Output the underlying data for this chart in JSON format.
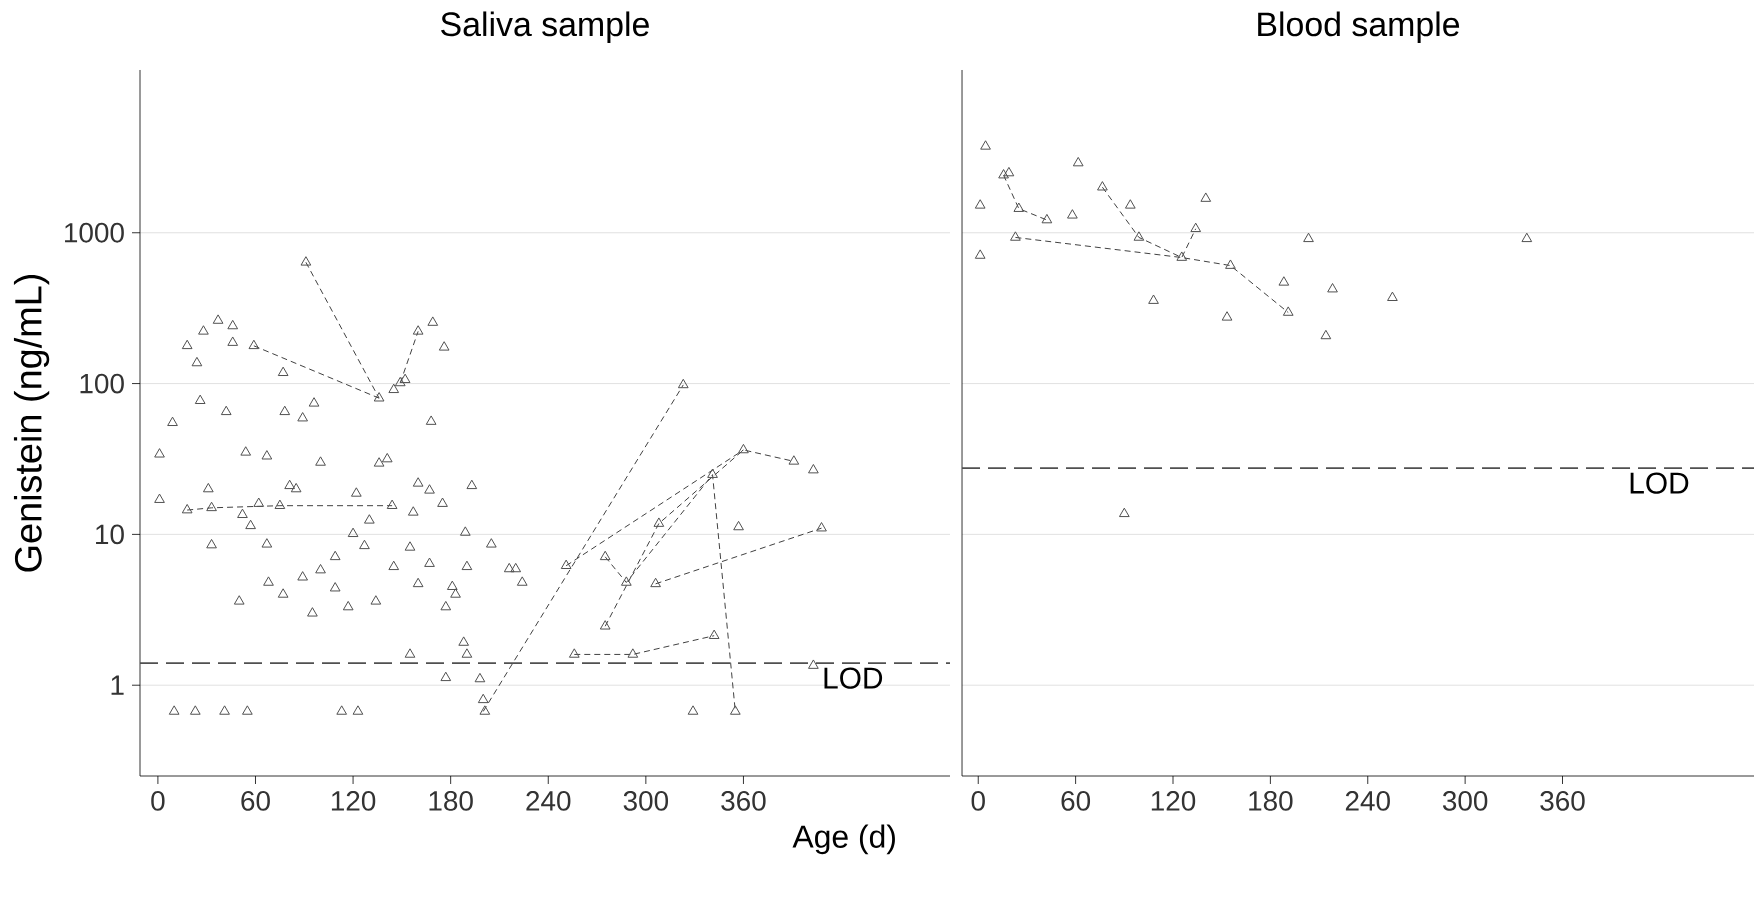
{
  "chart_data": [
    {
      "type": "scatter",
      "title": "Saliva sample",
      "xlabel": "Age (d)",
      "ylabel": "Genistein (ng/mL)",
      "log": "y",
      "grid": "y",
      "marker": "triangle",
      "xlim": [
        -11,
        487
      ],
      "xticks": [
        0,
        60,
        120,
        180,
        240,
        300,
        360
      ],
      "ylim": [
        0.25,
        12000
      ],
      "yticks": [
        1,
        10,
        100,
        1000
      ],
      "ref_lines": [
        {
          "axis": "y",
          "value": 1.4,
          "label": "LOD",
          "color": "#505050",
          "line_style": "dashed"
        }
      ],
      "series": [
        {
          "color": "#505050",
          "x": [
            1,
            1,
            9,
            18,
            28,
            24,
            37,
            46,
            46,
            59,
            77,
            26,
            42,
            78,
            89,
            96,
            54,
            67,
            81,
            85,
            100,
            31,
            18,
            33,
            52,
            57,
            62,
            75,
            33,
            67,
            50,
            68,
            77,
            89,
            95,
            100,
            109,
            109,
            117,
            122,
            120,
            127,
            134,
            136,
            141,
            130,
            144,
            145,
            136,
            145,
            149,
            152,
            160,
            169,
            176,
            157,
            155,
            160,
            160,
            167,
            168,
            175,
            167,
            181,
            183,
            189,
            193,
            190,
            205,
            216,
            220,
            177,
            188,
            190,
            177,
            198,
            200,
            201,
            155,
            10,
            23,
            41,
            55,
            113,
            123,
            91,
            224,
            251,
            275,
            288,
            306,
            308,
            275,
            323,
            341,
            360,
            391,
            403,
            357,
            408,
            256,
            292,
            342,
            403,
            329,
            355
          ],
          "values": [
            34,
            17,
            55,
            178,
            222,
            137,
            262,
            241,
            187,
            178,
            118,
            77,
            65,
            65,
            59,
            74,
            35,
            33,
            21,
            20,
            30,
            20,
            14.5,
            15,
            13.5,
            11.4,
            16,
            15.5,
            8.5,
            8.6,
            3.6,
            4.8,
            4.0,
            5.2,
            3.0,
            5.8,
            7.1,
            4.4,
            3.3,
            18.7,
            10.1,
            8.4,
            3.6,
            29.6,
            31.6,
            12.4,
            15.5,
            6.1,
            80,
            91,
            101,
            106,
            222,
            254,
            174,
            14,
            8.2,
            4.7,
            21.8,
            19.6,
            56,
            16,
            6.4,
            4.5,
            4.0,
            10.3,
            21,
            6.1,
            8.6,
            5.9,
            5.9,
            3.3,
            1.92,
            1.6,
            1.12,
            1.1,
            0.8,
            0.67,
            1.6,
            0.67,
            0.67,
            0.67,
            0.67,
            0.67,
            0.67,
            637,
            4.8,
            6.2,
            7.1,
            4.8,
            4.7,
            11.8,
            2.46,
            98,
            24.9,
            36.3,
            30.5,
            26.7,
            11.2,
            11,
            1.6,
            1.6,
            2.13,
            1.35,
            0.67,
            0.67
          ]
        },
        {
          "type": "line",
          "marker": "none",
          "line_style": "dashed",
          "color": "#404040",
          "x": [
            91,
            136
          ],
          "values": [
            637,
            80
          ]
        },
        {
          "type": "line",
          "marker": "none",
          "line_style": "dashed",
          "color": "#404040",
          "x": [
            59,
            136
          ],
          "values": [
            178,
            80
          ]
        },
        {
          "type": "line",
          "marker": "none",
          "line_style": "dashed",
          "color": "#404040",
          "x": [
            200,
            323
          ],
          "values": [
            0.67,
            98
          ]
        },
        {
          "type": "line",
          "marker": "none",
          "line_style": "dashed",
          "color": "#404040",
          "x": [
            275,
            308,
            360,
            391
          ],
          "values": [
            2.46,
            11.8,
            36.3,
            30.5
          ]
        },
        {
          "type": "line",
          "marker": "none",
          "line_style": "dashed",
          "color": "#404040",
          "x": [
            251,
            360
          ],
          "values": [
            6.2,
            36.3
          ]
        },
        {
          "type": "line",
          "marker": "none",
          "line_style": "dashed",
          "color": "#404040",
          "x": [
            275,
            288,
            341,
            355
          ],
          "values": [
            7.1,
            4.8,
            24.9,
            0.67
          ]
        },
        {
          "type": "line",
          "marker": "none",
          "line_style": "dashed",
          "color": "#404040",
          "x": [
            306,
            408
          ],
          "values": [
            4.7,
            11
          ]
        },
        {
          "type": "line",
          "marker": "none",
          "line_style": "dashed",
          "color": "#404040",
          "x": [
            256,
            292,
            342
          ],
          "values": [
            1.6,
            1.6,
            2.13
          ]
        },
        {
          "type": "line",
          "marker": "none",
          "line_style": "dashed",
          "color": "#404040",
          "x": [
            18,
            33,
            75,
            144
          ],
          "values": [
            14.5,
            15,
            15.5,
            15.5
          ]
        },
        {
          "type": "line",
          "marker": "none",
          "line_style": "dashed",
          "color": "#404040",
          "x": [
            149,
            160
          ],
          "values": [
            101,
            222
          ]
        }
      ]
    },
    {
      "type": "scatter",
      "title": "Blood sample",
      "log": "y",
      "grid": "y",
      "marker": "triangle",
      "tick_labels": "x",
      "xlim": [
        -10,
        478
      ],
      "xticks": [
        0,
        60,
        120,
        180,
        240,
        300,
        360
      ],
      "ylim": [
        0.25,
        12000
      ],
      "yticks": [
        1,
        10,
        100,
        1000
      ],
      "ref_lines": [
        {
          "axis": "y",
          "value": 27.5,
          "label": "LOD",
          "color": "#505050",
          "line_style": "dashed"
        }
      ],
      "series": [
        {
          "color": "#505050",
          "x": [
            4.5,
            1.2,
            1.2,
            15.6,
            18.9,
            25,
            42.3,
            22.9,
            58,
            61.6,
            76.5,
            93.7,
            99,
            108,
            125.4,
            134,
            140.2,
            155.4,
            153.3,
            188.3,
            191,
            203.5,
            218.3,
            214.2,
            255.2,
            338,
            90
          ],
          "values": [
            3740,
            1520,
            707,
            2410,
            2490,
            1445,
            1215,
            931,
            1306,
            2900,
            2005,
            1520,
            931,
            355,
            685,
            1063,
            1686,
            606,
            275,
            469,
            296,
            912,
            423,
            207,
            371,
            912,
            13.7
          ]
        },
        {
          "type": "line",
          "marker": "none",
          "line_style": "dashed",
          "color": "#404040",
          "x": [
            15.6,
            25,
            42.3
          ],
          "values": [
            2410,
            1445,
            1215
          ]
        },
        {
          "type": "line",
          "marker": "none",
          "line_style": "dashed",
          "color": "#404040",
          "x": [
            22.9,
            125.4,
            155.4,
            191
          ],
          "values": [
            931,
            685,
            606,
            296
          ]
        },
        {
          "type": "line",
          "marker": "none",
          "line_style": "dashed",
          "color": "#404040",
          "x": [
            76.5,
            99,
            125.4,
            134
          ],
          "values": [
            2005,
            931,
            685,
            1063
          ]
        }
      ]
    }
  ]
}
